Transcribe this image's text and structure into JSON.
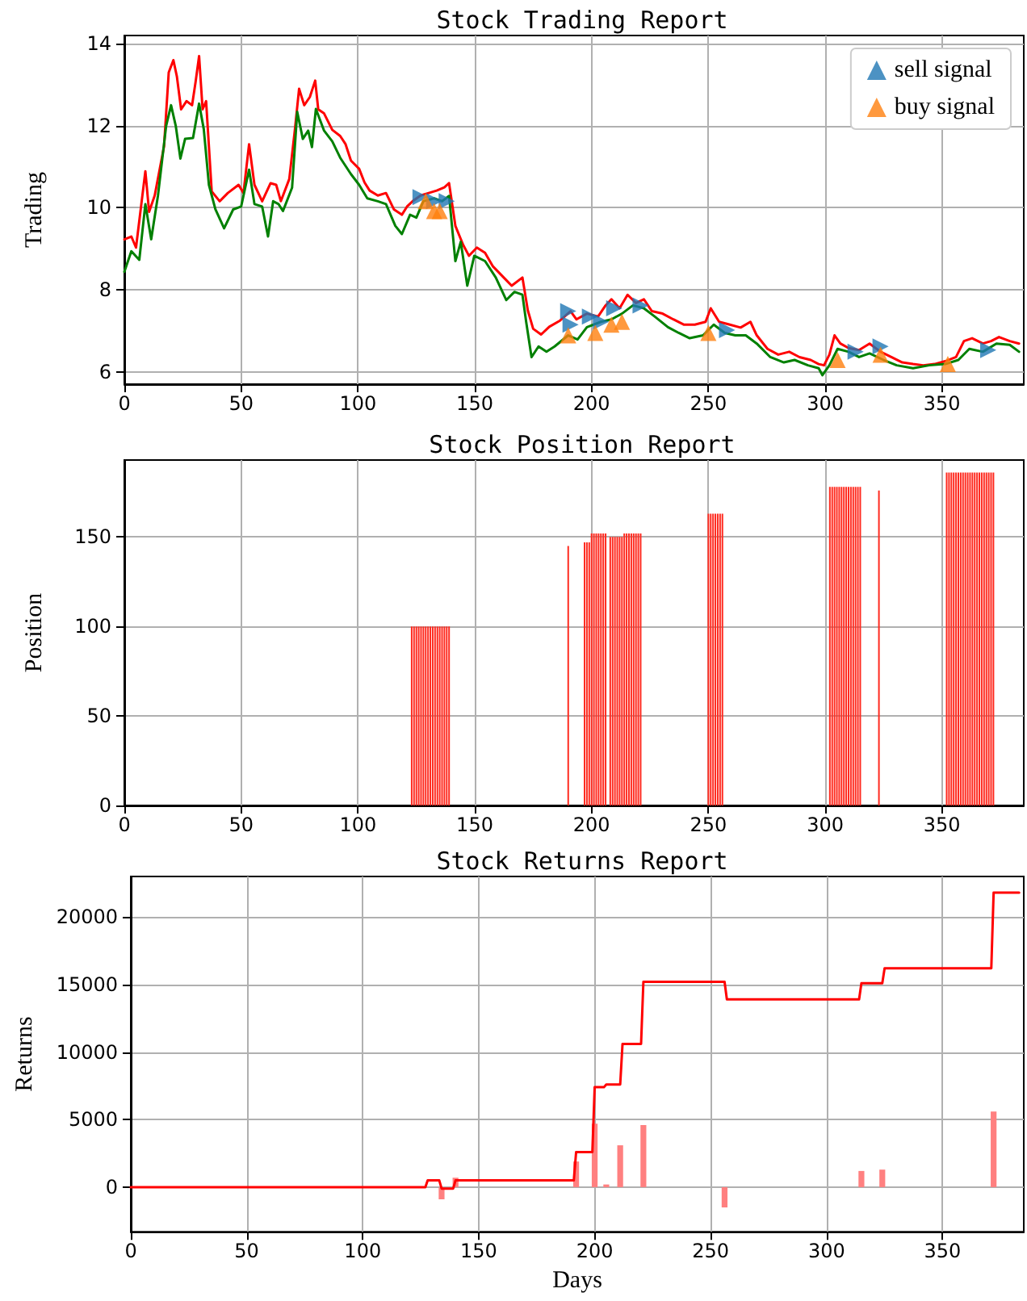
{
  "chart_data": [
    {
      "type": "line",
      "title": "Stock Trading Report",
      "ylabel": "Trading",
      "xlim": [
        0,
        385
      ],
      "xticks": [
        0,
        50,
        100,
        150,
        200,
        250,
        300,
        350
      ],
      "ylim": [
        5.7,
        14.2
      ],
      "yticks": [
        6,
        8,
        10,
        12,
        14
      ],
      "grid": true,
      "legend": "top right",
      "marker": "none",
      "series": [
        {
          "color": "#ff0000",
          "x": [
            0,
            3,
            5,
            9,
            10.6,
            13,
            17,
            19,
            21,
            22.5,
            24.3,
            26.6,
            29,
            30.5,
            32,
            33.5,
            35,
            37.4,
            40.8,
            44.3,
            48.9,
            51,
            53.4,
            55.7,
            59,
            62.6,
            65,
            67,
            70.6,
            73,
            74.8,
            77,
            79.4,
            81.7,
            83,
            85.5,
            89,
            92.4,
            94.7,
            97,
            100.5,
            102.8,
            105,
            108.5,
            112,
            115.4,
            118.8,
            121,
            123.4,
            126.8,
            130.3,
            133.7,
            137,
            139,
            141.7,
            145,
            147.5,
            150.9,
            154.4,
            157.8,
            162.4,
            165.8,
            170.4,
            172.7,
            175,
            178.4,
            181.9,
            186.5,
            191,
            193.5,
            198,
            202.8,
            206,
            208.5,
            212,
            215.4,
            219,
            222.4,
            225.8,
            230.4,
            235,
            239.6,
            244.2,
            248.8,
            251,
            254.6,
            259.2,
            263.8,
            268,
            270.7,
            275.3,
            279.9,
            284.6,
            289,
            293.8,
            297.2,
            299.5,
            301.8,
            304,
            306.5,
            310,
            314.5,
            319,
            323.7,
            328.3,
            333,
            337.6,
            342,
            346.8,
            351.4,
            356,
            359.4,
            362.9,
            367.5,
            371,
            374.4,
            379,
            383
          ],
          "values": [
            9.23,
            9.3,
            9.03,
            10.89,
            9.9,
            10.3,
            11.5,
            13.3,
            13.6,
            13.2,
            12.4,
            12.6,
            12.5,
            13.07,
            13.7,
            12.4,
            12.6,
            10.4,
            10.16,
            10.36,
            10.56,
            10.36,
            11.55,
            10.56,
            10.16,
            10.6,
            10.56,
            10.16,
            10.7,
            11.9,
            12.9,
            12.5,
            12.7,
            13.1,
            12.4,
            12.3,
            11.9,
            11.75,
            11.55,
            11.15,
            10.95,
            10.62,
            10.42,
            10.3,
            10.36,
            9.96,
            9.83,
            10.03,
            10.16,
            10.3,
            10.36,
            10.42,
            10.5,
            10.6,
            9.56,
            9.1,
            8.83,
            9.03,
            8.9,
            8.57,
            8.3,
            8.1,
            8.3,
            7.5,
            7.05,
            6.91,
            7.1,
            7.25,
            7.48,
            7.28,
            7.42,
            7.35,
            7.62,
            7.77,
            7.55,
            7.88,
            7.68,
            7.77,
            7.48,
            7.42,
            7.28,
            7.15,
            7.15,
            7.22,
            7.55,
            7.22,
            7.15,
            7.08,
            7.22,
            6.89,
            6.56,
            6.42,
            6.49,
            6.36,
            6.29,
            6.19,
            6.16,
            6.42,
            6.89,
            6.69,
            6.58,
            6.53,
            6.69,
            6.49,
            6.36,
            6.23,
            6.19,
            6.16,
            6.19,
            6.26,
            6.36,
            6.75,
            6.82,
            6.69,
            6.75,
            6.85,
            6.75,
            6.69
          ]
        },
        {
          "color": "#008000",
          "x": [
            0,
            3,
            6.4,
            9,
            11.5,
            14.4,
            17.9,
            20,
            22,
            24,
            26,
            29.4,
            32,
            34,
            36.2,
            39,
            42.7,
            46.6,
            50,
            53.4,
            55.7,
            59,
            61.5,
            63.7,
            66,
            67.9,
            71.8,
            74,
            76.4,
            78.7,
            80.3,
            82,
            85.5,
            89,
            92.4,
            97,
            100.5,
            104,
            108.5,
            112,
            116,
            118.8,
            122.3,
            125,
            128,
            132.6,
            136,
            139,
            141.7,
            144,
            146.8,
            149.8,
            154.4,
            159,
            163.5,
            167,
            170.4,
            172,
            174.3,
            177.3,
            180.7,
            184.2,
            190,
            194,
            198,
            204,
            208.5,
            213,
            217.7,
            222.4,
            227,
            232.7,
            237.3,
            242,
            247.7,
            252.3,
            257,
            261.5,
            266,
            270.7,
            276.5,
            282.3,
            286.9,
            292.6,
            297.2,
            298.8,
            301.8,
            305.3,
            310,
            314.5,
            319,
            325,
            330.6,
            337.6,
            344.5,
            351.4,
            357,
            361.7,
            367.5,
            373.3,
            379,
            383
          ],
          "values": [
            8.44,
            8.94,
            8.73,
            10.09,
            9.23,
            10.3,
            12.0,
            12.5,
            12.0,
            11.2,
            11.68,
            11.7,
            12.54,
            11.92,
            10.56,
            9.96,
            9.5,
            9.96,
            10.03,
            10.93,
            10.09,
            10.03,
            9.3,
            10.16,
            10.09,
            9.92,
            10.49,
            12.34,
            11.68,
            11.88,
            11.48,
            12.41,
            11.88,
            11.62,
            11.22,
            10.82,
            10.56,
            10.23,
            10.16,
            10.09,
            9.56,
            9.36,
            9.83,
            9.76,
            10.16,
            10.23,
            10.16,
            10.29,
            8.7,
            9.17,
            8.1,
            8.83,
            8.7,
            8.3,
            7.75,
            7.95,
            7.88,
            7.22,
            6.36,
            6.62,
            6.49,
            6.62,
            6.89,
            6.79,
            7.09,
            7.22,
            7.28,
            7.42,
            7.62,
            7.55,
            7.35,
            7.09,
            6.95,
            6.82,
            6.89,
            7.15,
            6.95,
            6.89,
            6.89,
            6.69,
            6.36,
            6.23,
            6.29,
            6.16,
            6.09,
            5.92,
            6.16,
            6.56,
            6.49,
            6.36,
            6.45,
            6.29,
            6.16,
            6.09,
            6.16,
            6.19,
            6.29,
            6.56,
            6.49,
            6.69,
            6.66,
            6.49
          ]
        },
        {
          "type": "scatter",
          "name": "sell signal",
          "color": "#1f77b4",
          "marker": "triangle-right",
          "x": [
            126.8,
            132.6,
            138,
            190,
            191,
            199.3,
            204,
            209.7,
            221,
            258,
            313,
            323.7,
            369.8
          ],
          "values": [
            10.26,
            10.16,
            10.16,
            7.48,
            7.15,
            7.35,
            7.22,
            7.55,
            7.62,
            7.02,
            6.49,
            6.62,
            6.53
          ]
        },
        {
          "type": "scatter",
          "name": "buy signal",
          "color": "#ff7f0e",
          "marker": "triangle",
          "x": [
            129,
            132.6,
            135,
            190,
            201.6,
            208.5,
            213,
            250,
            305.3,
            323.7,
            352.5
          ],
          "values": [
            10.16,
            9.92,
            9.92,
            6.89,
            6.95,
            7.15,
            7.22,
            6.95,
            6.29,
            6.42,
            6.19
          ]
        }
      ]
    },
    {
      "type": "bar",
      "title": "Stock Position Report",
      "ylabel": "Position",
      "xlim": [
        0,
        385
      ],
      "xticks": [
        0,
        50,
        100,
        150,
        200,
        250,
        300,
        350
      ],
      "ylim": [
        0,
        193
      ],
      "yticks": [
        0,
        50,
        100,
        150
      ],
      "grid": true,
      "series": [
        {
          "color": "#ff2a1f",
          "x": [
            123,
            124,
            125,
            126,
            127,
            128,
            129,
            130,
            131,
            132,
            133,
            134,
            135,
            136,
            137,
            138,
            139,
            190,
            197,
            198,
            199,
            200,
            201,
            202,
            203,
            204,
            205,
            206,
            208,
            209,
            210,
            211,
            212,
            213,
            214,
            215,
            216,
            217,
            218,
            219,
            220,
            221,
            250,
            251,
            252,
            253,
            254,
            255,
            256,
            302,
            303,
            304,
            305,
            306,
            307,
            308,
            309,
            310,
            311,
            312,
            313,
            314,
            315,
            323,
            352,
            353,
            354,
            355,
            356,
            357,
            358,
            359,
            360,
            361,
            362,
            363,
            364,
            365,
            366,
            367,
            368,
            369,
            370,
            371,
            372
          ],
          "values": [
            100,
            100,
            100,
            100,
            100,
            100,
            100,
            100,
            100,
            100,
            100,
            100,
            100,
            100,
            100,
            100,
            100,
            145,
            147,
            147,
            147,
            152,
            152,
            152,
            152,
            152,
            152,
            152,
            150,
            150,
            150,
            150,
            150,
            150,
            152,
            152,
            152,
            152,
            152,
            152,
            152,
            152,
            163,
            163,
            163,
            163,
            163,
            163,
            163,
            178,
            178,
            178,
            178,
            178,
            178,
            178,
            178,
            178,
            178,
            178,
            178,
            178,
            178,
            176,
            186,
            186,
            186,
            186,
            186,
            186,
            186,
            186,
            186,
            186,
            186,
            186,
            186,
            186,
            186,
            186,
            186,
            186,
            186,
            186,
            186
          ]
        }
      ]
    },
    {
      "type": "line",
      "title": "Stock Returns Report",
      "xlabel": "Days",
      "ylabel": "Returns",
      "xlim": [
        0,
        385
      ],
      "xticks": [
        0,
        50,
        100,
        150,
        200,
        250,
        300,
        350
      ],
      "ylim": [
        -3300,
        23000
      ],
      "yticks": [
        0,
        5000,
        10000,
        15000,
        20000
      ],
      "grid": true,
      "marker": "none",
      "series": [
        {
          "color": "#ff0000",
          "x": [
            0,
            127,
            128,
            133,
            134,
            139,
            140,
            191,
            192,
            199,
            200,
            204,
            205,
            211,
            212,
            220,
            221,
            256,
            257,
            314,
            315,
            324,
            325,
            371,
            372,
            383
          ],
          "values": [
            0,
            0,
            500,
            500,
            -100,
            -100,
            500,
            500,
            2600,
            2600,
            7400,
            7400,
            7600,
            7600,
            10600,
            10600,
            15200,
            15200,
            13900,
            13900,
            15100,
            15100,
            16200,
            16200,
            21800,
            21800
          ]
        },
        {
          "type": "bar",
          "color": "#ff8080",
          "x": [
            134,
            140,
            192,
            200,
            205,
            211,
            221,
            256,
            315,
            324,
            372
          ],
          "values": [
            -900,
            700,
            1900,
            4700,
            200,
            3100,
            4600,
            -1500,
            1200,
            1300,
            5600
          ]
        }
      ]
    }
  ]
}
